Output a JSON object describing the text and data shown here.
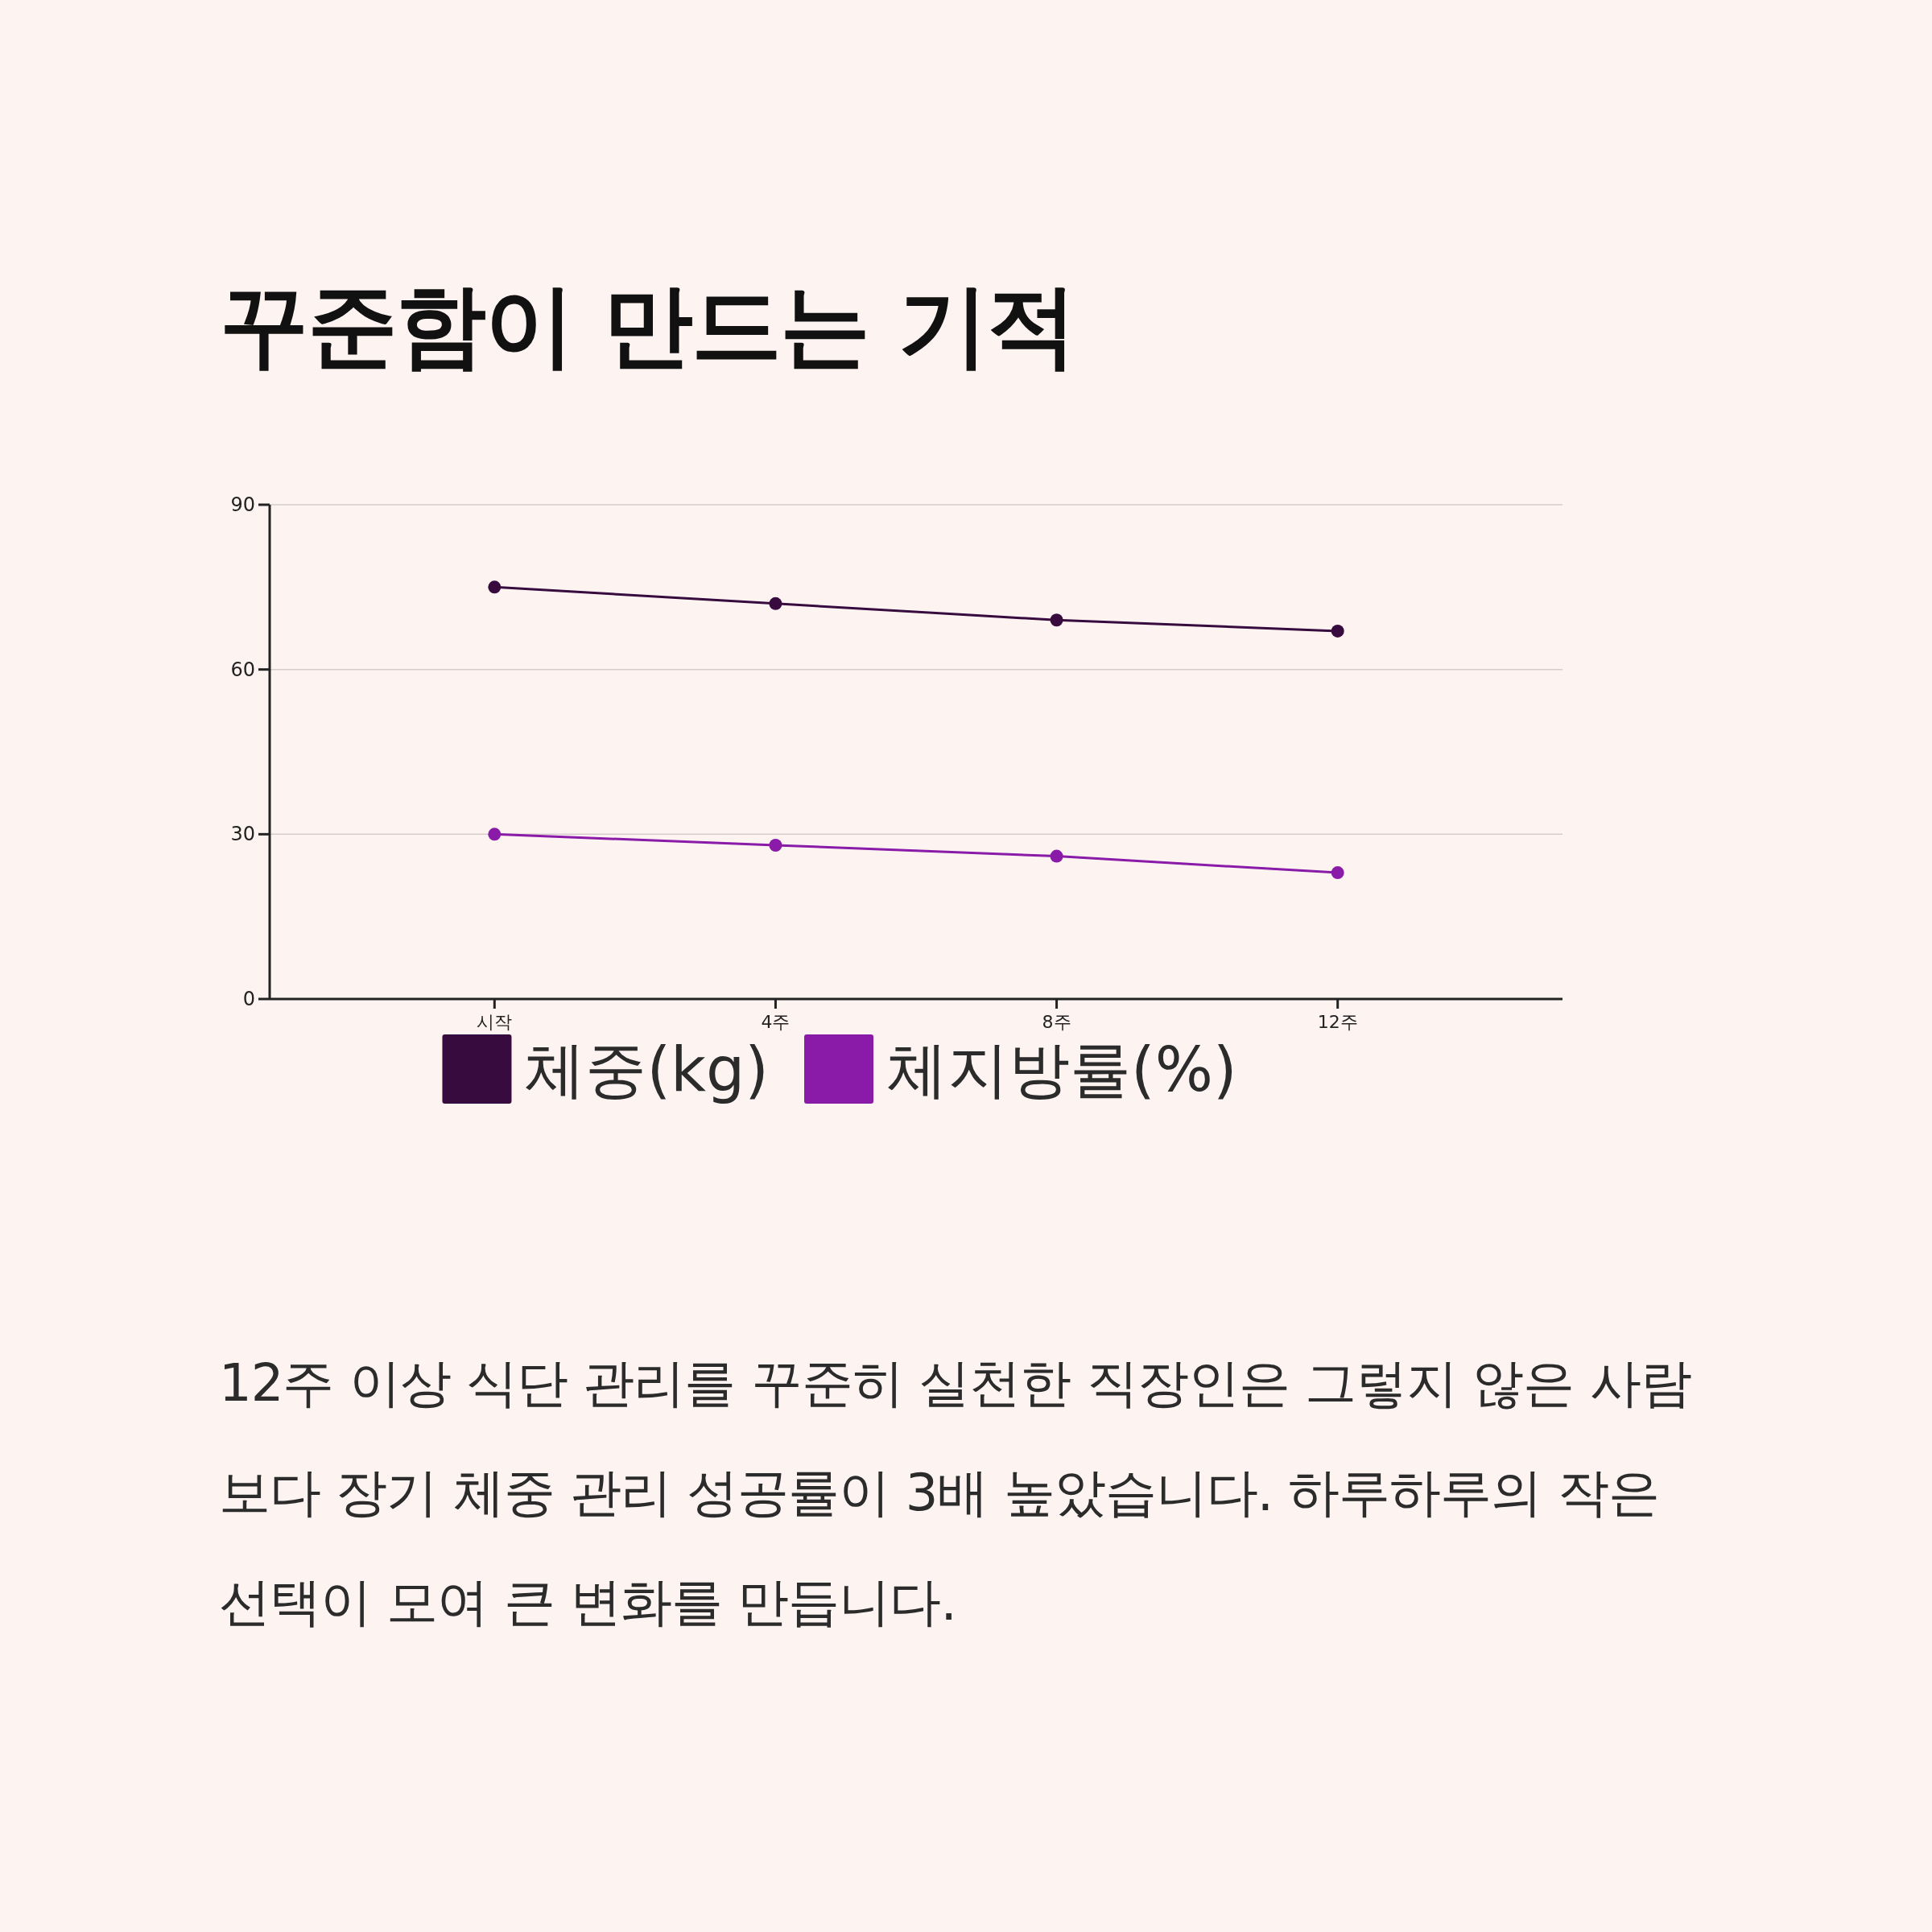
{
  "chart_data": {
    "type": "line",
    "title": "꾸준함이 만드는 기적",
    "categories": [
      "시작",
      "4주",
      "8주",
      "12주"
    ],
    "series": [
      {
        "name": "체중(kg)",
        "color": "#370b3d",
        "values": [
          75,
          72,
          69,
          67
        ]
      },
      {
        "name": "체지방률(%)",
        "color": "#8a1aa8",
        "values": [
          30,
          28,
          26,
          23
        ]
      }
    ],
    "ylim": [
      0,
      90
    ],
    "yticks": [
      0,
      30,
      60,
      90
    ],
    "grid": "y",
    "legend": "bottom",
    "marker": "circle",
    "annotations": [
      "12주 이상 식단 관리를 꾸준히 실천한 직장인은 그렇지 않은 사람보다 장기 체중 관리 성공률이 3배 높았습니다. 하루하루의 작은 선택이 모여 큰 변화를 만듭니다."
    ]
  }
}
